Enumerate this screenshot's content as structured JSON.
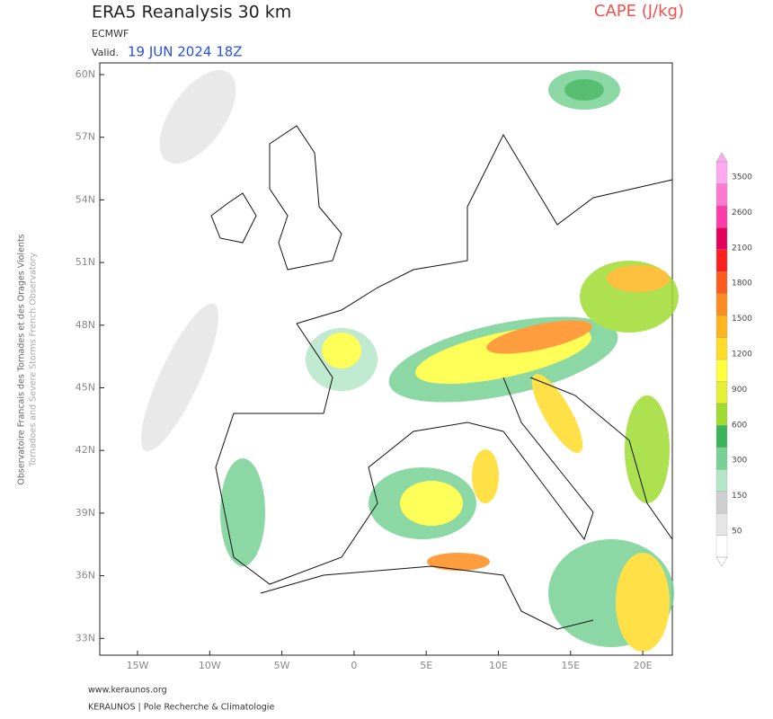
{
  "header": {
    "title": "ERA5 Reanalysis 30 km",
    "model": "ECMWF",
    "valid_label": "Valid.",
    "valid_time": "19 JUN 2024 18Z",
    "field": "CAPE (J/kg)"
  },
  "map": {
    "lat_labels": [
      "60N",
      "57N",
      "54N",
      "51N",
      "48N",
      "45N",
      "42N",
      "39N",
      "36N",
      "33N"
    ],
    "lon_labels": [
      "15W",
      "10W",
      "5W",
      "0",
      "5E",
      "10E",
      "15E",
      "20E"
    ]
  },
  "colorbar": {
    "ticks": [
      50,
      150,
      300,
      600,
      900,
      1200,
      1500,
      1800,
      2100,
      2600,
      3500
    ],
    "colors": [
      "#ffffff",
      "#e6e6e6",
      "#cfcfcf",
      "#b4e6c8",
      "#78d296",
      "#3cb45a",
      "#a0dc32",
      "#e6f032",
      "#ffff3c",
      "#ffdc28",
      "#ffb41e",
      "#ff8c1e",
      "#ff5a1e",
      "#ff1e1e",
      "#e6005a",
      "#ff3caa",
      "#ff78d2",
      "#ffaaf0"
    ]
  },
  "side": {
    "line1": "Observatoire Francais des Tornades et des Orages Violents",
    "line2": "Tornadoes and Severe Storms French Observatory"
  },
  "footer": {
    "url": "www.keraunos.org",
    "org": "KERAUNOS | Pole Recherche & Climatologie"
  }
}
